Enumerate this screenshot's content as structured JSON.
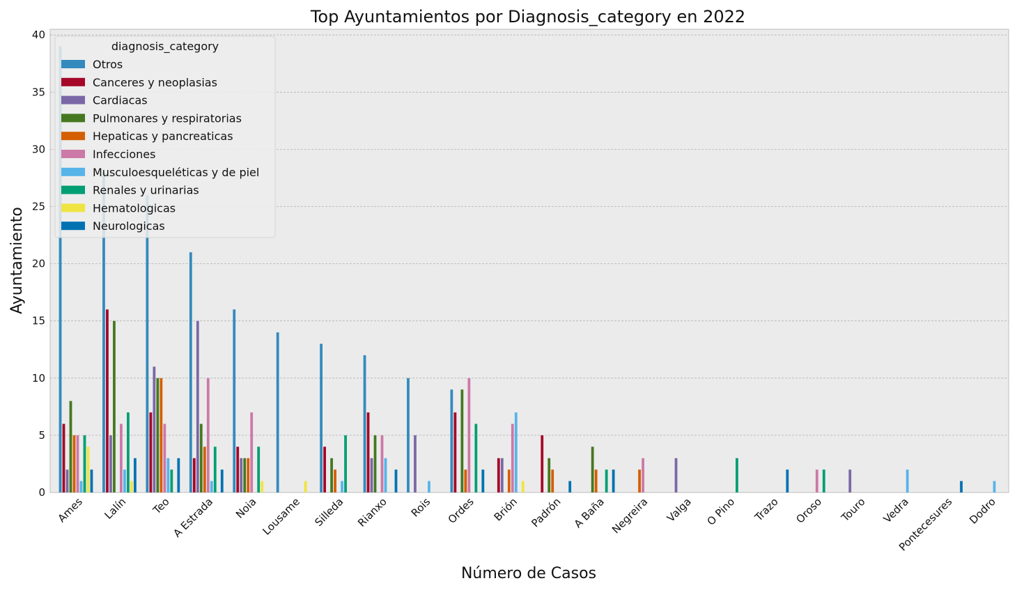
{
  "chart_data": {
    "type": "bar",
    "title": "Top Ayuntamientos por Diagnosis_category en 2022",
    "xlabel": "Número de Casos",
    "ylabel": "Ayuntamiento",
    "ylim": [
      0,
      40.5
    ],
    "yticks": [
      0,
      5,
      10,
      15,
      20,
      25,
      30,
      35,
      40
    ],
    "grid": true,
    "legend_title": "diagnosis_category",
    "legend_position": "upper-left",
    "categories": [
      "Ames",
      "Lalín",
      "Teo",
      "A Estrada",
      "Noia",
      "Lousame",
      "Silleda",
      "Rianxo",
      "Rois",
      "Ordes",
      "Brión",
      "Padrón",
      "A Baña",
      "Negreira",
      "Valga",
      "O Pino",
      "Trazo",
      "Oroso",
      "Touro",
      "Vedra",
      "Pontecesures",
      "Dodro"
    ],
    "series": [
      {
        "name": "Otros",
        "color": "#348ABD",
        "values": [
          39,
          28,
          26,
          21,
          16,
          14,
          13,
          12,
          10,
          9,
          0,
          0,
          0,
          0,
          0,
          0,
          0,
          0,
          0,
          0,
          0,
          0
        ]
      },
      {
        "name": "Canceres y neoplasias",
        "color": "#A60628",
        "values": [
          6,
          16,
          7,
          3,
          4,
          0,
          4,
          7,
          0,
          7,
          3,
          5,
          0,
          0,
          0,
          0,
          0,
          0,
          0,
          0,
          0,
          0
        ]
      },
      {
        "name": "Cardiacas",
        "color": "#7A68A6",
        "values": [
          2,
          5,
          11,
          15,
          3,
          0,
          0,
          3,
          5,
          0,
          3,
          0,
          0,
          0,
          3,
          0,
          0,
          0,
          2,
          0,
          0,
          0
        ]
      },
      {
        "name": "Pulmonares y respiratorias",
        "color": "#467821",
        "values": [
          8,
          15,
          10,
          6,
          3,
          0,
          3,
          5,
          0,
          9,
          0,
          3,
          4,
          0,
          0,
          0,
          0,
          0,
          0,
          0,
          0,
          0
        ]
      },
      {
        "name": "Hepaticas y pancreaticas",
        "color": "#D55E00",
        "values": [
          5,
          0,
          10,
          4,
          3,
          0,
          2,
          0,
          0,
          2,
          2,
          2,
          2,
          2,
          0,
          0,
          0,
          0,
          0,
          0,
          0,
          0
        ]
      },
      {
        "name": "Infecciones",
        "color": "#CC79A7",
        "values": [
          5,
          6,
          6,
          10,
          7,
          0,
          0,
          5,
          0,
          10,
          6,
          0,
          0,
          3,
          0,
          0,
          0,
          2,
          0,
          0,
          0,
          0
        ]
      },
      {
        "name": "Musculoesqueléticas y de piel",
        "color": "#56B4E9",
        "values": [
          1,
          2,
          3,
          1,
          0,
          0,
          1,
          3,
          1,
          0,
          7,
          0,
          0,
          0,
          0,
          0,
          0,
          0,
          0,
          2,
          0,
          1
        ]
      },
      {
        "name": "Renales y urinarias",
        "color": "#009E73",
        "values": [
          5,
          7,
          2,
          4,
          4,
          0,
          5,
          0,
          0,
          6,
          0,
          0,
          2,
          0,
          0,
          3,
          0,
          2,
          0,
          0,
          0,
          0
        ]
      },
      {
        "name": "Hematologicas",
        "color": "#F0E442",
        "values": [
          4,
          1,
          0,
          0,
          1,
          1,
          0,
          0,
          0,
          0,
          1,
          0,
          0,
          0,
          0,
          0,
          0,
          0,
          0,
          0,
          0,
          0
        ]
      },
      {
        "name": "Neurologicas",
        "color": "#0072B2",
        "values": [
          2,
          3,
          3,
          2,
          0,
          0,
          0,
          2,
          0,
          2,
          0,
          1,
          2,
          0,
          0,
          0,
          2,
          0,
          0,
          0,
          1,
          0
        ]
      }
    ]
  }
}
